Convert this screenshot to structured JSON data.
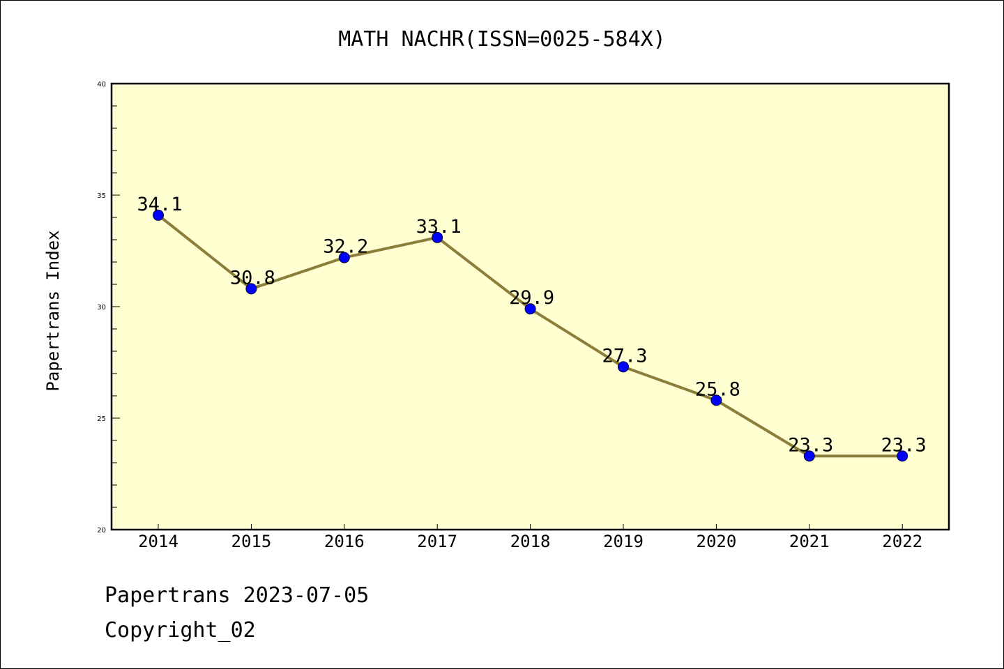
{
  "chart_data": {
    "type": "line",
    "title": "MATH NACHR(ISSN=0025-584X)",
    "ylabel": "Papertrans Index",
    "xlabel": "",
    "categories": [
      "2014",
      "2015",
      "2016",
      "2017",
      "2018",
      "2019",
      "2020",
      "2021",
      "2022"
    ],
    "series": [
      {
        "values": [
          34.1,
          30.8,
          32.2,
          33.1,
          29.9,
          27.3,
          25.8,
          23.3,
          23.3
        ],
        "labels": [
          "34.1",
          "30.8",
          "32.2",
          "33.1",
          "29.9",
          "27.3",
          "25.8",
          "23.3",
          "23.3"
        ]
      }
    ],
    "ylim": [
      20,
      40
    ],
    "yticks": [
      20,
      25,
      30,
      35,
      40
    ],
    "grid": false,
    "legend": "none",
    "colors": {
      "line": "#8b7d3a",
      "marker": "#0000ff",
      "plot_background": "#ffffd2",
      "frame": "#000000"
    }
  },
  "footer": {
    "line1": "Papertrans 2023-07-05",
    "line2": "Copyright_02"
  }
}
